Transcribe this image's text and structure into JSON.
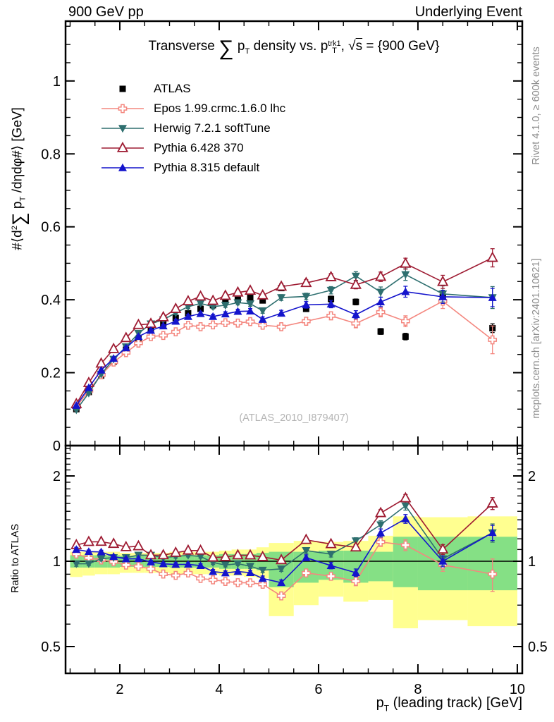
{
  "header": {
    "left": "900 GeV pp",
    "right": "Underlying Event"
  },
  "side_notes": {
    "rivet": "Rivet 4.1.0, ≥ 600k events",
    "mcplots": "mcplots.cern.ch [arXiv:2401.10621]"
  },
  "watermark": "(ATLAS_2010_I879407)",
  "title_parts": {
    "t1": "Transverse ",
    "sum": "∑",
    "p1": " p",
    "p1sub": "T",
    "t2": " density vs. p",
    "psup": "trk1",
    "psub": "T",
    "t3": ", ",
    "sqrt": "√",
    "s": "s",
    "t4": " = {900 GeV}"
  },
  "ylabel_parts": {
    "a": "#⟨d",
    "sup": "2",
    "sum": "∑",
    "b": " p",
    "bsub": "T",
    "c": " /dηdφ#⟩ [GeV]"
  },
  "xlabel_parts": {
    "a": "p",
    "sub": "T",
    "b": " (leading track) [GeV]"
  },
  "ratio_label": "Ratio to ATLAS",
  "chart_data": {
    "type": "line",
    "title": "Transverse Sum pT density vs. pT^trk1, sqrt(s) = {900 GeV}",
    "xlabel": "pT (leading track) [GeV]",
    "ylabel": "#<d^2 Sum pT /detadphi#> [GeV]",
    "ratio_ylabel": "Ratio to ATLAS",
    "grid": false,
    "legend_position": "top-left-inside",
    "xlim": [
      0.908,
      10.1
    ],
    "ylim": [
      0,
      1.164
    ],
    "ratio_ylim": [
      0.4,
      2.56
    ],
    "ratio_scale": "log",
    "x_ticks": {
      "major": [
        2,
        4,
        6,
        8,
        10
      ],
      "labels": [
        "2",
        "4",
        "6",
        "8",
        "10"
      ],
      "minor_step": 0.5
    },
    "y_ticks": {
      "major": [
        0.2,
        0.4,
        0.6,
        0.8,
        1.0
      ],
      "labels": [
        "0.2",
        "0.4",
        "0.6",
        "0.8",
        "1"
      ],
      "zero_label": "0",
      "minor_step": 0.05
    },
    "ratio_ticks": {
      "major": [
        0.5,
        1,
        2
      ],
      "labels": [
        "0.5",
        "1",
        "2"
      ],
      "minor": [
        0.6,
        0.7,
        0.8,
        0.9,
        1.1,
        1.2,
        1.3,
        1.4,
        1.5,
        1.6,
        1.7,
        1.8,
        1.9,
        2.1,
        2.2,
        2.3,
        2.4,
        2.5
      ]
    },
    "x": [
      1.125,
      1.375,
      1.625,
      1.875,
      2.125,
      2.375,
      2.625,
      2.875,
      3.125,
      3.375,
      3.625,
      3.875,
      4.125,
      4.375,
      4.625,
      4.875,
      5.25,
      5.75,
      6.25,
      6.75,
      7.25,
      7.75,
      8.5,
      9.5
    ],
    "series": [
      {
        "id": "atlas",
        "name": "ATLAS",
        "color": "#000000",
        "marker": "square-filled",
        "line": false,
        "values": [
          0.1,
          0.147,
          0.192,
          0.23,
          0.263,
          0.293,
          0.318,
          0.335,
          0.35,
          0.363,
          0.375,
          0.385,
          0.397,
          0.4,
          0.405,
          0.398,
          0.432,
          0.375,
          0.402,
          0.394,
          0.313,
          0.299,
          0.408,
          0.322
        ],
        "errors": [
          0.003,
          0.003,
          0.003,
          0.003,
          0.004,
          0.004,
          0.004,
          0.004,
          0.004,
          0.005,
          0.005,
          0.005,
          0.005,
          0.006,
          0.006,
          0.006,
          0.006,
          0.007,
          0.008,
          0.008,
          0.008,
          0.009,
          0.01,
          0.012
        ]
      },
      {
        "id": "epos",
        "name": "Epos 1.99.crmc.1.6.0 lhc",
        "color": "#f4877f",
        "marker": "cross-open",
        "line": true,
        "values": [
          0.106,
          0.151,
          0.194,
          0.229,
          0.255,
          0.281,
          0.299,
          0.302,
          0.312,
          0.33,
          0.326,
          0.331,
          0.337,
          0.336,
          0.34,
          0.33,
          0.326,
          0.341,
          0.356,
          0.335,
          0.366,
          0.341,
          0.396,
          0.29
        ],
        "errors": [
          0.002,
          0.002,
          0.003,
          0.003,
          0.003,
          0.004,
          0.004,
          0.004,
          0.005,
          0.005,
          0.005,
          0.006,
          0.006,
          0.007,
          0.007,
          0.008,
          0.008,
          0.01,
          0.011,
          0.012,
          0.013,
          0.015,
          0.02,
          0.038
        ]
      },
      {
        "id": "herwig",
        "name": "Herwig 7.2.1 softTune",
        "color": "#2e6f6f",
        "marker": "triangle-down-filled",
        "line": true,
        "values": [
          0.098,
          0.144,
          0.196,
          0.237,
          0.271,
          0.308,
          0.334,
          0.345,
          0.364,
          0.381,
          0.39,
          0.381,
          0.385,
          0.392,
          0.389,
          0.37,
          0.406,
          0.409,
          0.426,
          0.465,
          0.421,
          0.469,
          0.416,
          0.406
        ],
        "errors": [
          0.002,
          0.002,
          0.003,
          0.003,
          0.003,
          0.004,
          0.004,
          0.004,
          0.005,
          0.005,
          0.005,
          0.006,
          0.006,
          0.006,
          0.007,
          0.007,
          0.008,
          0.009,
          0.01,
          0.012,
          0.014,
          0.016,
          0.022,
          0.03
        ]
      },
      {
        "id": "pythia6",
        "name": "Pythia 6.428 370",
        "color": "#9e1b32",
        "marker": "triangle-up-open",
        "line": true,
        "values": [
          0.114,
          0.172,
          0.225,
          0.265,
          0.295,
          0.331,
          0.334,
          0.352,
          0.375,
          0.396,
          0.409,
          0.397,
          0.411,
          0.42,
          0.425,
          0.412,
          0.436,
          0.446,
          0.462,
          0.441,
          0.463,
          0.499,
          0.449,
          0.515
        ],
        "errors": [
          0.002,
          0.002,
          0.003,
          0.003,
          0.003,
          0.004,
          0.004,
          0.004,
          0.005,
          0.005,
          0.005,
          0.006,
          0.006,
          0.006,
          0.007,
          0.007,
          0.008,
          0.009,
          0.01,
          0.011,
          0.013,
          0.015,
          0.018,
          0.025
        ]
      },
      {
        "id": "pythia8",
        "name": "Pythia 8.315 default",
        "color": "#1414cc",
        "marker": "triangle-up-filled",
        "line": true,
        "values": [
          0.11,
          0.159,
          0.207,
          0.239,
          0.268,
          0.299,
          0.316,
          0.328,
          0.341,
          0.354,
          0.362,
          0.354,
          0.361,
          0.368,
          0.369,
          0.346,
          0.363,
          0.386,
          0.388,
          0.359,
          0.394,
          0.422,
          0.408,
          0.406
        ],
        "errors": [
          0.002,
          0.002,
          0.003,
          0.003,
          0.003,
          0.004,
          0.004,
          0.004,
          0.005,
          0.005,
          0.005,
          0.006,
          0.006,
          0.006,
          0.007,
          0.007,
          0.008,
          0.009,
          0.01,
          0.011,
          0.013,
          0.015,
          0.018,
          0.025
        ]
      }
    ],
    "ratio": {
      "reference": "ATLAS",
      "bands": {
        "yellow_color": "#ffff90",
        "green_color": "#85e085",
        "edges": [
          1.0,
          1.25,
          1.5,
          1.75,
          2.0,
          2.25,
          2.5,
          2.75,
          3.0,
          3.25,
          3.5,
          3.75,
          4.0,
          4.25,
          4.5,
          4.75,
          5.0,
          5.5,
          6.0,
          6.5,
          7.0,
          7.5,
          8.0,
          9.0,
          10.0
        ],
        "yellow_lo": [
          0.88,
          0.89,
          0.9,
          0.9,
          0.91,
          0.91,
          0.91,
          0.91,
          0.9,
          0.9,
          0.9,
          0.9,
          0.89,
          0.89,
          0.88,
          0.87,
          0.64,
          0.7,
          0.75,
          0.72,
          0.73,
          0.58,
          0.62,
          0.59
        ],
        "yellow_hi": [
          1.08,
          1.08,
          1.08,
          1.08,
          1.07,
          1.07,
          1.07,
          1.07,
          1.08,
          1.08,
          1.08,
          1.08,
          1.09,
          1.1,
          1.1,
          1.12,
          1.16,
          1.18,
          1.17,
          1.18,
          1.23,
          1.44,
          1.43,
          1.44
        ],
        "green_lo": [
          0.95,
          0.95,
          0.95,
          0.95,
          0.955,
          0.955,
          0.955,
          0.955,
          0.95,
          0.95,
          0.95,
          0.95,
          0.94,
          0.94,
          0.94,
          0.93,
          0.81,
          0.84,
          0.86,
          0.84,
          0.85,
          0.81,
          0.79,
          0.79
        ],
        "green_hi": [
          1.05,
          1.05,
          1.05,
          1.05,
          1.045,
          1.045,
          1.045,
          1.045,
          1.05,
          1.05,
          1.05,
          1.05,
          1.06,
          1.06,
          1.06,
          1.07,
          1.08,
          1.08,
          1.09,
          1.09,
          1.08,
          1.22,
          1.22,
          1.22
        ]
      }
    }
  }
}
